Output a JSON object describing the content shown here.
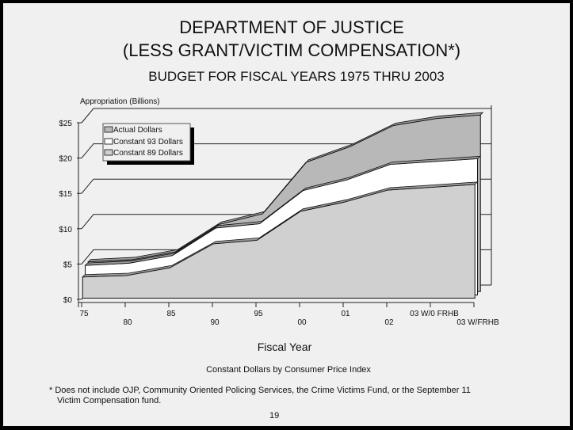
{
  "chart_data": {
    "type": "area",
    "title_line1": "DEPARTMENT OF JUSTICE",
    "title_line2": "(LESS GRANT/VICTIM COMPENSATION*)",
    "subtitle": "BUDGET FOR FISCAL YEARS 1975 THRU 2003",
    "ylabel": "Appropriation  (Billions)",
    "xlabel": "Fiscal Year",
    "ylim": [
      0,
      25
    ],
    "yticks": [
      "$0",
      "$5",
      "$10",
      "$15",
      "$20",
      "$25"
    ],
    "categories": [
      "75",
      "80",
      "85",
      "90",
      "95",
      "00",
      "01",
      "02",
      "03 W/0 FRHB",
      "03 W/FRHB"
    ],
    "legend": [
      "Actual Dollars",
      "Constant 93 Dollars",
      "Constant 89 Dollars"
    ],
    "series": [
      {
        "name": "Actual Dollars",
        "color": "#b8b8b8",
        "values": [
          4.2,
          4.5,
          5.6,
          9.5,
          11.0,
          18.3,
          20.5,
          23.5,
          24.5,
          25.0
        ]
      },
      {
        "name": "Constant 93 Dollars",
        "color": "#ffffff",
        "values": [
          4.2,
          4.5,
          5.6,
          9.5,
          10.1,
          14.8,
          16.3,
          18.5,
          18.9,
          19.3
        ]
      },
      {
        "name": "Constant 89 Dollars",
        "color": "#d0d0d0",
        "values": [
          3.0,
          3.2,
          4.3,
          7.7,
          8.2,
          12.3,
          13.6,
          15.3,
          15.7,
          16.1
        ]
      }
    ]
  },
  "notes": {
    "cpi_note": "Constant Dollars by Consumer Price Index",
    "footnote_line1": "* Does not include OJP, Community Oriented Policing Services,  the Crime Victims Fund, or the September 11",
    "footnote_line2": "Victim Compensation fund.",
    "page_number": "19"
  }
}
